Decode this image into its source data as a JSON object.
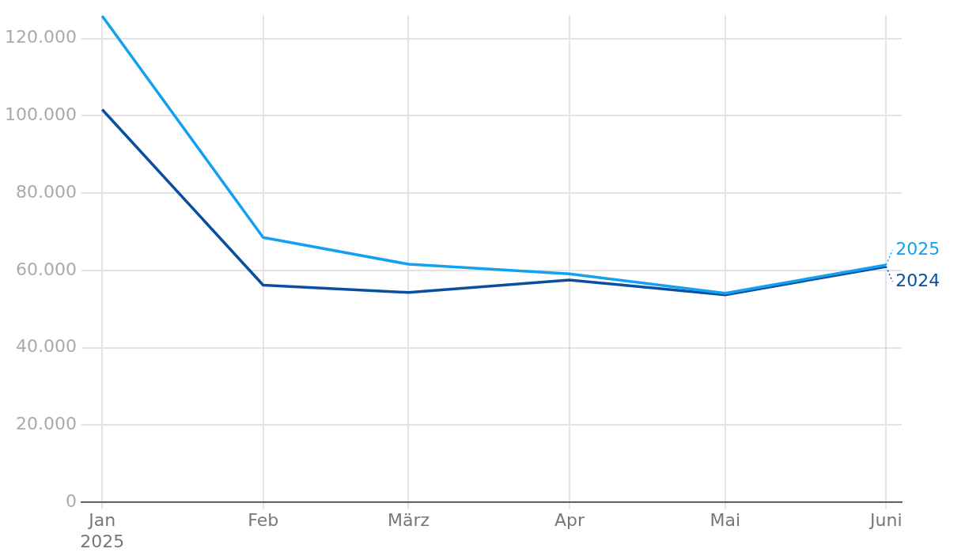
{
  "chart_data": {
    "type": "line",
    "x": [
      "2025-01",
      "2025-02",
      "2025-03",
      "2025-04",
      "2025-05",
      "2025-06"
    ],
    "series": [
      {
        "name": "2025",
        "color": "#14a0f0",
        "values": [
          125800,
          68500,
          61600,
          59100,
          54100,
          61400
        ]
      },
      {
        "name": "2024",
        "color": "#0a4ea0",
        "values": [
          101600,
          56200,
          54300,
          57500,
          53700,
          61000
        ]
      }
    ],
    "xlim": [
      "2024-12-28",
      "2025-06-04"
    ],
    "xticks": [
      {
        "value": "2025-01",
        "label": "Jan\n2025"
      },
      {
        "value": "2025-02",
        "label": "Feb"
      },
      {
        "value": "2025-03",
        "label": "März"
      },
      {
        "value": "2025-04",
        "label": "Apr"
      },
      {
        "value": "2025-05",
        "label": "Mai"
      },
      {
        "value": "2025-06",
        "label": "Juni"
      }
    ],
    "ylim": [
      0,
      126000
    ],
    "yticks": [
      {
        "value": 0,
        "label": "0"
      },
      {
        "value": 20000,
        "label": "20.000"
      },
      {
        "value": 40000,
        "label": "40.000"
      },
      {
        "value": 60000,
        "label": "60.000"
      },
      {
        "value": 80000,
        "label": "80.000"
      },
      {
        "value": 100000,
        "label": "100.000"
      },
      {
        "value": 120000,
        "label": "120.000"
      }
    ],
    "grid": true,
    "legend": "right",
    "marker": "none",
    "line_style": "solid"
  }
}
